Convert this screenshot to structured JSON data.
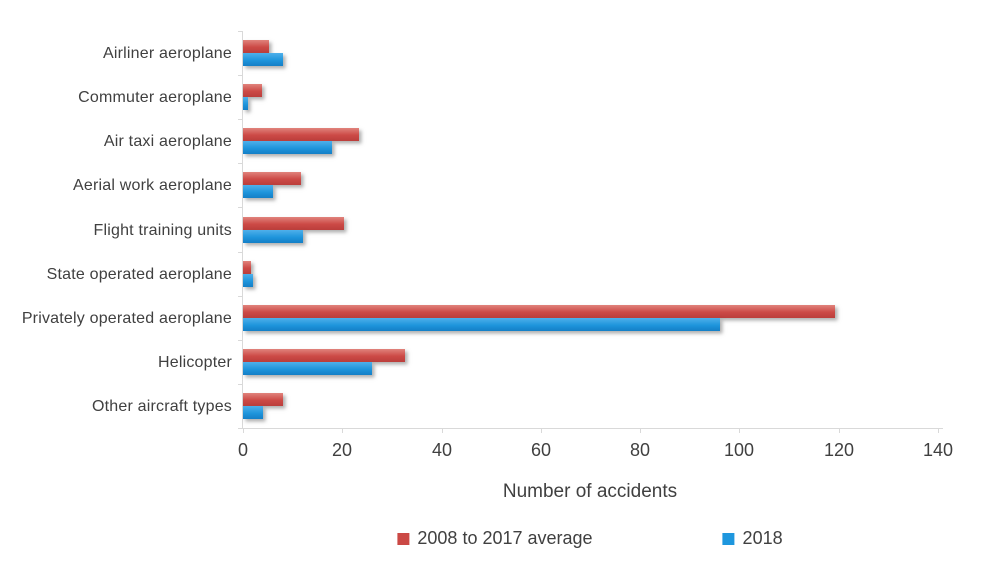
{
  "chart_data": {
    "type": "bar",
    "orientation": "horizontal",
    "title": "",
    "xlabel": "Number of accidents",
    "ylabel": "",
    "categories": [
      "Airliner aeroplane",
      "Commuter aeroplane",
      "Air taxi aeroplane",
      "Aerial work aeroplane",
      "Flight training units",
      "State operated aeroplane",
      "Privately operated aeroplane",
      "Helicopter",
      "Other aircraft types"
    ],
    "series": [
      {
        "name": "2008 to 2017 average",
        "color": "#cb4945",
        "values": [
          5.3,
          3.9,
          23.4,
          11.6,
          20.3,
          1.7,
          119.2,
          32.6,
          8
        ]
      },
      {
        "name": "2018",
        "color": "#1e97de",
        "values": [
          8,
          1,
          18,
          6,
          12,
          2,
          96,
          26,
          4
        ]
      }
    ],
    "x_ticks": [
      0,
      20,
      40,
      60,
      80,
      100,
      120,
      140
    ],
    "xlim": [
      0,
      140
    ],
    "grid": false,
    "legend_position": "bottom",
    "axis_color": "#d9d9d9",
    "text_color": "#404040",
    "background_color": "#ffffff"
  }
}
